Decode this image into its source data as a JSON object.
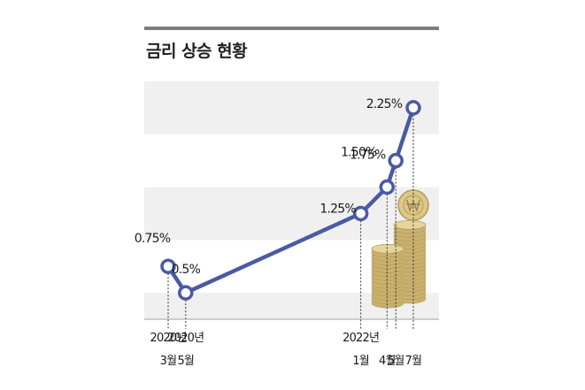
{
  "title": "금리 상승 현황",
  "chart_data": {
    "type": "line",
    "title": "금리 상승 현황",
    "categories": [
      {
        "l1": "2020년",
        "l2": "3월"
      },
      {
        "l1": "2020년",
        "l2": "5월"
      },
      {
        "l1": "2022년",
        "l2": "1월"
      },
      {
        "l1": "",
        "l2": "4월"
      },
      {
        "l1": "",
        "l2": "5월"
      },
      {
        "l1": "",
        "l2": "7월"
      }
    ],
    "x_months": [
      0,
      2,
      22,
      25,
      26,
      28
    ],
    "values": [
      0.75,
      0.5,
      1.25,
      1.5,
      1.75,
      2.25
    ],
    "data_labels": [
      "0.75%",
      "0.5%",
      "1.25%",
      "1.50%",
      "1.75%",
      "2.25%"
    ],
    "ylim": [
      0.25,
      2.5
    ],
    "grid": "alternating horizontal bands",
    "colors": {
      "line": "#4a5aa3",
      "band": "#f0f0f0",
      "marker_fill": "#ffffff",
      "coin": "#d9c486"
    }
  }
}
